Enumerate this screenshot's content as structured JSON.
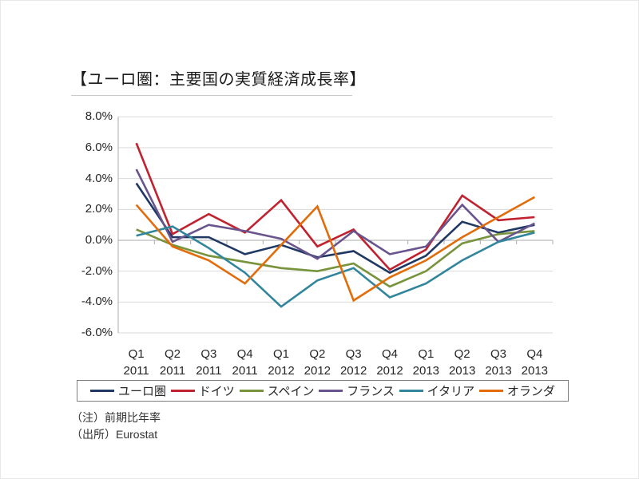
{
  "title": "【ユーロ圏：主要国の実質経済成長率】",
  "notes": [
    "（注）前期比年率",
    "（出所）Eurostat"
  ],
  "chart_data": {
    "type": "line",
    "title": "【ユーロ圏：主要国の実質経済成長率】",
    "unit": "%",
    "ylim": [
      -6,
      8
    ],
    "ytick_step": 2,
    "ytick_labels": [
      "8.0%",
      "6.0%",
      "4.0%",
      "2.0%",
      "0.0%",
      "-2.0%",
      "-4.0%",
      "-6.0%"
    ],
    "grid": true,
    "legend_position": "bottom",
    "categories": [
      {
        "q": "Q1",
        "year": "2011"
      },
      {
        "q": "Q2",
        "year": "2011"
      },
      {
        "q": "Q3",
        "year": "2011"
      },
      {
        "q": "Q4",
        "year": "2011"
      },
      {
        "q": "Q1",
        "year": "2012"
      },
      {
        "q": "Q2",
        "year": "2012"
      },
      {
        "q": "Q3",
        "year": "2012"
      },
      {
        "q": "Q4",
        "year": "2012"
      },
      {
        "q": "Q1",
        "year": "2013"
      },
      {
        "q": "Q2",
        "year": "2013"
      },
      {
        "q": "Q3",
        "year": "2013"
      },
      {
        "q": "Q4",
        "year": "2013"
      }
    ],
    "series": [
      {
        "key": "euro-area",
        "name": "ユーロ圏",
        "color": "#1F3864",
        "values": [
          3.7,
          0.2,
          0.2,
          -0.9,
          -0.3,
          -1.1,
          -0.7,
          -2.1,
          -1.0,
          1.2,
          0.5,
          1.0
        ]
      },
      {
        "key": "germany",
        "name": "ドイツ",
        "color": "#C0222F",
        "values": [
          6.3,
          0.4,
          1.7,
          0.5,
          2.6,
          -0.4,
          0.7,
          -1.9,
          -0.6,
          2.9,
          1.3,
          1.5
        ]
      },
      {
        "key": "spain",
        "name": "スペイン",
        "color": "#77933C",
        "values": [
          0.7,
          -0.3,
          -1.0,
          -1.4,
          -1.8,
          -2.0,
          -1.5,
          -3.0,
          -2.0,
          -0.2,
          0.4,
          0.6
        ]
      },
      {
        "key": "france",
        "name": "フランス",
        "color": "#6A548E",
        "values": [
          4.6,
          -0.1,
          1.0,
          0.6,
          0.1,
          -1.2,
          0.6,
          -0.9,
          -0.4,
          2.3,
          -0.1,
          1.1
        ]
      },
      {
        "key": "italy",
        "name": "イタリア",
        "color": "#31859C",
        "values": [
          0.3,
          0.9,
          -0.5,
          -2.1,
          -4.3,
          -2.6,
          -1.8,
          -3.7,
          -2.8,
          -1.3,
          -0.1,
          0.5
        ]
      },
      {
        "key": "netherlands",
        "name": "オランダ",
        "color": "#E36C0A",
        "values": [
          2.3,
          -0.4,
          -1.3,
          -2.8,
          -0.3,
          2.2,
          -3.9,
          -2.4,
          -1.3,
          0.2,
          1.5,
          2.8
        ]
      }
    ]
  }
}
